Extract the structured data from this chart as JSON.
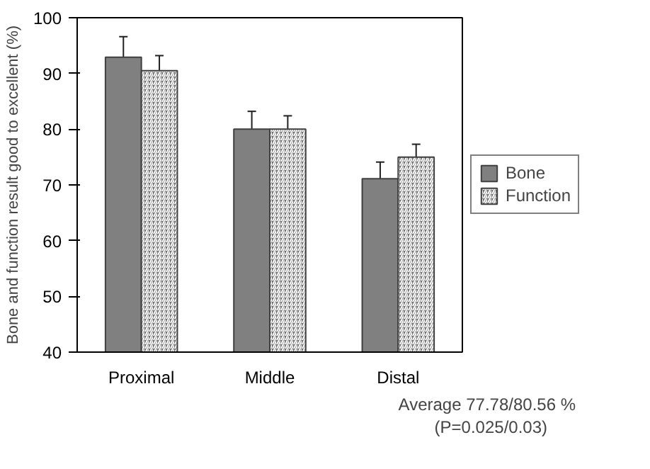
{
  "chart_data": {
    "type": "bar",
    "ylabel": "Bone and function result good to excellent (%)",
    "categories": [
      "Proximal",
      "Middle",
      "Distal"
    ],
    "series": [
      {
        "name": "Bone",
        "color": "#808080",
        "values": [
          92.9,
          80.0,
          71.1
        ],
        "errors": [
          3.7,
          3.2,
          3.0
        ]
      },
      {
        "name": "Function",
        "color": "#707070",
        "values": [
          90.5,
          80.0,
          75.0
        ],
        "errors": [
          2.7,
          2.4,
          2.3
        ]
      }
    ],
    "ylim": [
      40,
      100
    ],
    "yticks": [
      40,
      50,
      60,
      70,
      80,
      90,
      100
    ],
    "grid": false,
    "legend": "right",
    "annotations": [
      "Average 77.78/80.56 %",
      "(P=0.025/0.03)"
    ]
  }
}
